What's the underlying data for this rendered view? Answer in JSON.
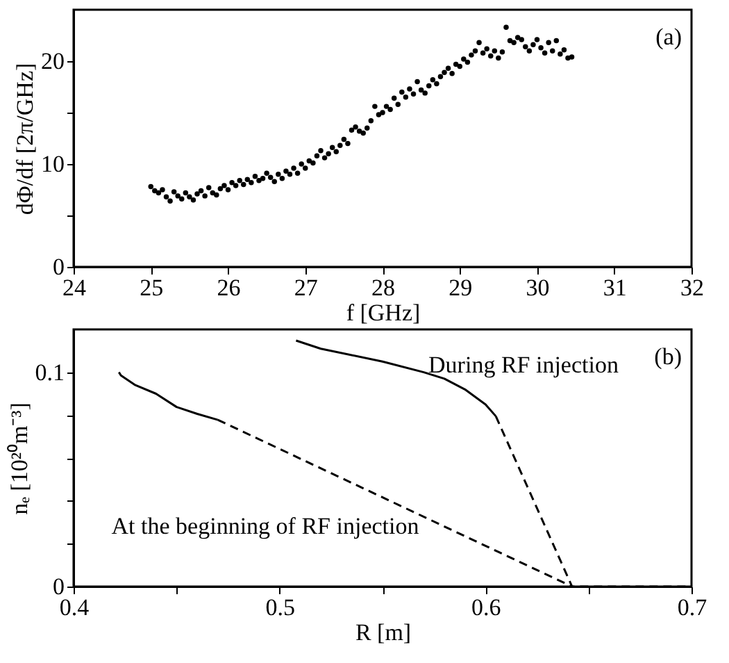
{
  "chart_data": [
    {
      "type": "scatter",
      "xlabel": "f [GHz]",
      "ylabel": "dΦ/df [2π/GHz]",
      "annotations": [
        "(a)"
      ],
      "marker": "circle",
      "grid": false,
      "xlim": [
        24,
        32
      ],
      "xticks": [
        24,
        25,
        26,
        27,
        28,
        29,
        30,
        31,
        32
      ],
      "ylim": [
        0,
        25
      ],
      "yticks": [
        0,
        {
          "value": 5,
          "label": null
        },
        10,
        {
          "value": 15,
          "label": null
        },
        20
      ],
      "x": [
        25.0,
        25.05,
        25.1,
        25.15,
        25.2,
        25.25,
        25.3,
        25.35,
        25.4,
        25.45,
        25.5,
        25.55,
        25.6,
        25.65,
        25.7,
        25.75,
        25.8,
        25.85,
        25.9,
        25.95,
        26.0,
        26.05,
        26.1,
        26.15,
        26.2,
        26.25,
        26.3,
        26.35,
        26.4,
        26.45,
        26.5,
        26.55,
        26.6,
        26.65,
        26.7,
        26.75,
        26.8,
        26.85,
        26.9,
        26.95,
        27.0,
        27.05,
        27.1,
        27.15,
        27.2,
        27.25,
        27.3,
        27.35,
        27.4,
        27.45,
        27.5,
        27.55,
        27.6,
        27.65,
        27.7,
        27.75,
        27.8,
        27.85,
        27.9,
        27.95,
        28.0,
        28.05,
        28.1,
        28.15,
        28.2,
        28.25,
        28.3,
        28.35,
        28.4,
        28.45,
        28.5,
        28.55,
        28.6,
        28.65,
        28.7,
        28.75,
        28.8,
        28.85,
        28.9,
        28.95,
        29.0,
        29.05,
        29.1,
        29.15,
        29.2,
        29.25,
        29.3,
        29.35,
        29.4,
        29.45,
        29.5,
        29.55,
        29.6,
        29.65,
        29.7,
        29.75,
        29.8,
        29.85,
        29.9,
        29.95,
        30.0,
        30.05,
        30.1,
        30.15,
        30.2,
        30.25,
        30.3,
        30.35,
        30.4,
        30.45
      ],
      "series": [
        {
          "color": "#000000",
          "values": [
            7.8,
            7.4,
            7.2,
            7.5,
            6.8,
            6.4,
            7.3,
            6.9,
            6.6,
            7.2,
            6.8,
            6.5,
            7.1,
            7.4,
            6.9,
            7.7,
            7.2,
            7.0,
            7.6,
            7.9,
            7.5,
            8.2,
            7.9,
            8.4,
            8.0,
            8.5,
            8.2,
            8.8,
            8.4,
            8.6,
            9.1,
            8.7,
            8.3,
            9.0,
            8.6,
            9.3,
            9.0,
            9.6,
            9.1,
            10.0,
            9.6,
            10.3,
            10.1,
            10.8,
            11.3,
            10.6,
            11.0,
            11.6,
            11.2,
            11.8,
            12.4,
            12.0,
            13.3,
            13.6,
            13.2,
            13.0,
            13.5,
            14.2,
            15.6,
            14.8,
            15.0,
            15.6,
            15.3,
            16.4,
            15.8,
            17.0,
            16.5,
            17.3,
            16.8,
            18.0,
            17.2,
            16.9,
            17.6,
            18.2,
            17.8,
            18.5,
            18.9,
            19.3,
            18.8,
            19.7,
            19.5,
            20.2,
            19.9,
            20.6,
            21.0,
            21.8,
            20.8,
            21.2,
            20.5,
            21.0,
            20.3,
            20.9,
            23.3,
            22.0,
            21.8,
            22.3,
            22.1,
            21.4,
            21.0,
            21.6,
            22.1,
            21.3,
            20.8,
            21.8,
            21.0,
            22.0,
            20.7,
            21.1,
            20.3,
            20.4
          ]
        }
      ]
    },
    {
      "type": "line",
      "xlabel": "R [m]",
      "ylabel": "nₑ [10²⁰m⁻³]",
      "annotations": [
        "(b)",
        "During RF injection",
        "At the beginning of RF injection"
      ],
      "grid": false,
      "marker": "none",
      "xlim": [
        0.4,
        0.7
      ],
      "xticks": [
        0.4,
        {
          "value": 0.45,
          "label": null
        },
        0.5,
        {
          "value": 0.55,
          "label": null
        },
        0.6,
        {
          "value": 0.65,
          "label": null
        },
        0.7
      ],
      "ylim": [
        0,
        0.12
      ],
      "yticks": [
        0,
        {
          "value": 0.02,
          "label": null
        },
        {
          "value": 0.04,
          "label": null
        },
        {
          "value": 0.06,
          "label": null
        },
        {
          "value": 0.08,
          "label": null
        },
        0.1
      ],
      "series": [
        {
          "color": "#000000",
          "line_style": "solid",
          "x": [
            0.422,
            0.423,
            0.43,
            0.44,
            0.45,
            0.46,
            0.47
          ],
          "values": [
            0.1,
            0.0985,
            0.094,
            0.09,
            0.0838,
            0.0806,
            0.0778
          ]
        },
        {
          "color": "#000000",
          "line_style": "dashed",
          "x": [
            0.47,
            0.642
          ],
          "values": [
            0.0778,
            0
          ]
        },
        {
          "color": "#000000",
          "line_style": "solid",
          "x": [
            0.508,
            0.52,
            0.55,
            0.57,
            0.58,
            0.59,
            0.6,
            0.605
          ],
          "values": [
            0.1148,
            0.111,
            0.105,
            0.1,
            0.097,
            0.092,
            0.085,
            0.0795
          ]
        },
        {
          "color": "#000000",
          "line_style": "dashed",
          "x": [
            0.605,
            0.642,
            0.7
          ],
          "values": [
            0.0795,
            0,
            0
          ]
        }
      ]
    }
  ]
}
